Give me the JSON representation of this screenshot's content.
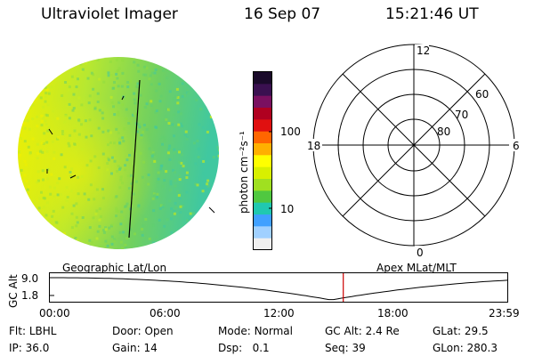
{
  "header": {
    "instrument": "Ultraviolet Imager",
    "date": "16 Sep 07",
    "time": "15:21:46 UT"
  },
  "colorbar": {
    "label": "photon cm⁻²s⁻¹",
    "ticks": [
      "100",
      "10"
    ],
    "scale": "log",
    "colors": [
      "#1a0a2a",
      "#3a1050",
      "#7a1060",
      "#b00020",
      "#e01010",
      "#ff6600",
      "#ffb000",
      "#ffff00",
      "#d8f000",
      "#a0e020",
      "#50c840",
      "#20c8b0",
      "#40a0ff",
      "#a0d0ff",
      "#f0f0f0"
    ]
  },
  "earth_image": {
    "description_tag": "uv-earth-disk",
    "colors": {
      "bright": "#f0f000",
      "mid": "#b8e830",
      "dim": "#70d060",
      "edge": "#40c8a0"
    }
  },
  "polar_grid": {
    "mlt_labels": [
      "12",
      "18",
      "6",
      "0"
    ],
    "mlat_labels": [
      "60",
      "70",
      "80"
    ]
  },
  "orbit_plot": {
    "y_axis_label": "GC Alt",
    "y_ticks": [
      "9.0",
      "1.8"
    ],
    "left_title": "Geographic Lat/Lon",
    "right_title": "Apex MLat/MLT",
    "x_ticks": [
      "00:00",
      "06:00",
      "12:00",
      "18:00",
      "23:59"
    ],
    "current_time_fraction": 0.6415,
    "marker_color": "#cc0000"
  },
  "footer": {
    "rows": [
      [
        {
          "key": "Flt:",
          "value": "LBHL"
        },
        {
          "key": "Door:",
          "value": "Open"
        },
        {
          "key": "Mode:",
          "value": "Normal"
        },
        {
          "key": "GC Alt:",
          "value": "2.4 Re"
        },
        {
          "key": "GLat:",
          "value": "29.5"
        }
      ],
      [
        {
          "key": "IP:",
          "value": "36.0"
        },
        {
          "key": "Gain:",
          "value": "14"
        },
        {
          "key": "Dsp:",
          "value": "0.1"
        },
        {
          "key": "Seq:",
          "value": "39"
        },
        {
          "key": "GLon:",
          "value": "280.3"
        }
      ]
    ]
  }
}
